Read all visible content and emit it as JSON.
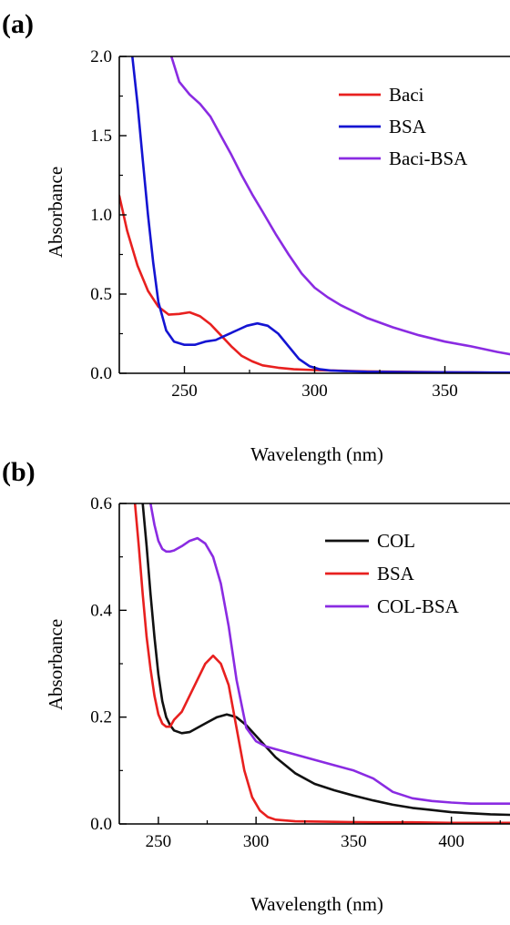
{
  "chart_data": [
    {
      "type": "line",
      "panel_label": "(a)",
      "xlabel": "Wavelength (nm)",
      "ylabel": "Absorbance",
      "xlim": [
        225,
        375
      ],
      "ylim": [
        0,
        2.0
      ],
      "xticks": [
        "250",
        "300",
        "350"
      ],
      "yticks": [
        "0.0",
        "0.5",
        "1.0",
        "1.5",
        "2.0"
      ],
      "legend_position": "top-right",
      "series": [
        {
          "name": "Baci",
          "color": "#e8201f",
          "x": [
            225,
            228,
            232,
            236,
            240,
            244,
            248,
            252,
            256,
            260,
            264,
            268,
            272,
            276,
            280,
            286,
            292,
            300,
            310,
            320,
            340,
            360,
            375
          ],
          "y": [
            1.12,
            0.9,
            0.68,
            0.52,
            0.42,
            0.37,
            0.375,
            0.385,
            0.36,
            0.31,
            0.24,
            0.17,
            0.11,
            0.075,
            0.05,
            0.035,
            0.025,
            0.02,
            0.016,
            0.012,
            0.008,
            0.005,
            0.003
          ]
        },
        {
          "name": "BSA",
          "color": "#1414d2",
          "x": [
            230,
            232,
            234,
            236,
            238,
            240,
            243,
            246,
            250,
            254,
            258,
            262,
            266,
            270,
            274,
            278,
            282,
            286,
            290,
            294,
            298,
            302,
            306,
            310,
            320,
            340,
            360,
            375
          ],
          "y": [
            2.0,
            1.7,
            1.35,
            1.0,
            0.7,
            0.45,
            0.27,
            0.2,
            0.18,
            0.18,
            0.2,
            0.21,
            0.24,
            0.27,
            0.3,
            0.315,
            0.3,
            0.25,
            0.17,
            0.09,
            0.045,
            0.025,
            0.018,
            0.015,
            0.01,
            0.007,
            0.005,
            0.004
          ]
        },
        {
          "name": "Baci-BSA",
          "color": "#8a2be2",
          "x": [
            245,
            248,
            252,
            256,
            260,
            264,
            268,
            272,
            276,
            280,
            285,
            290,
            295,
            300,
            305,
            310,
            320,
            330,
            340,
            350,
            360,
            370,
            375
          ],
          "y": [
            2.0,
            1.84,
            1.76,
            1.7,
            1.62,
            1.5,
            1.38,
            1.25,
            1.13,
            1.02,
            0.88,
            0.75,
            0.63,
            0.54,
            0.48,
            0.43,
            0.35,
            0.29,
            0.24,
            0.2,
            0.17,
            0.135,
            0.12
          ]
        }
      ]
    },
    {
      "type": "line",
      "panel_label": "(b)",
      "xlabel": "Wavelength (nm)",
      "ylabel": "Absorbance",
      "xlim": [
        230,
        430
      ],
      "ylim": [
        0,
        0.6
      ],
      "xticks": [
        "250",
        "300",
        "350",
        "400"
      ],
      "yticks": [
        "0.0",
        "0.2",
        "0.4",
        "0.6"
      ],
      "legend_position": "top-right",
      "series": [
        {
          "name": "COL",
          "color": "#111111",
          "x": [
            242,
            244,
            246,
            248,
            250,
            252,
            254,
            256,
            258,
            262,
            266,
            270,
            275,
            280,
            285,
            290,
            295,
            300,
            310,
            320,
            330,
            340,
            350,
            360,
            370,
            380,
            390,
            400,
            410,
            420,
            430
          ],
          "y": [
            0.6,
            0.52,
            0.43,
            0.35,
            0.28,
            0.23,
            0.2,
            0.185,
            0.175,
            0.17,
            0.172,
            0.18,
            0.19,
            0.2,
            0.205,
            0.2,
            0.185,
            0.165,
            0.125,
            0.095,
            0.075,
            0.063,
            0.053,
            0.044,
            0.036,
            0.03,
            0.026,
            0.022,
            0.02,
            0.018,
            0.017
          ]
        },
        {
          "name": "BSA",
          "color": "#e8201f",
          "x": [
            238,
            240,
            242,
            244,
            246,
            248,
            250,
            252,
            254,
            256,
            258,
            262,
            266,
            270,
            274,
            278,
            282,
            286,
            290,
            294,
            298,
            302,
            306,
            310,
            320,
            340,
            360,
            380,
            400,
            430
          ],
          "y": [
            0.6,
            0.52,
            0.43,
            0.35,
            0.29,
            0.24,
            0.205,
            0.188,
            0.182,
            0.182,
            0.195,
            0.21,
            0.24,
            0.27,
            0.3,
            0.315,
            0.3,
            0.26,
            0.18,
            0.1,
            0.05,
            0.025,
            0.013,
            0.008,
            0.005,
            0.004,
            0.003,
            0.003,
            0.002,
            0.002
          ]
        },
        {
          "name": "COL-BSA",
          "color": "#8a2be2",
          "x": [
            246,
            248,
            250,
            252,
            254,
            256,
            258,
            262,
            266,
            270,
            274,
            278,
            282,
            286,
            290,
            295,
            300,
            305,
            310,
            320,
            330,
            340,
            350,
            360,
            370,
            380,
            390,
            400,
            410,
            420,
            430
          ],
          "y": [
            0.6,
            0.56,
            0.53,
            0.515,
            0.51,
            0.51,
            0.512,
            0.52,
            0.53,
            0.535,
            0.525,
            0.5,
            0.45,
            0.37,
            0.27,
            0.18,
            0.155,
            0.145,
            0.14,
            0.13,
            0.12,
            0.11,
            0.1,
            0.085,
            0.06,
            0.048,
            0.043,
            0.04,
            0.038,
            0.038,
            0.038
          ]
        }
      ]
    }
  ]
}
